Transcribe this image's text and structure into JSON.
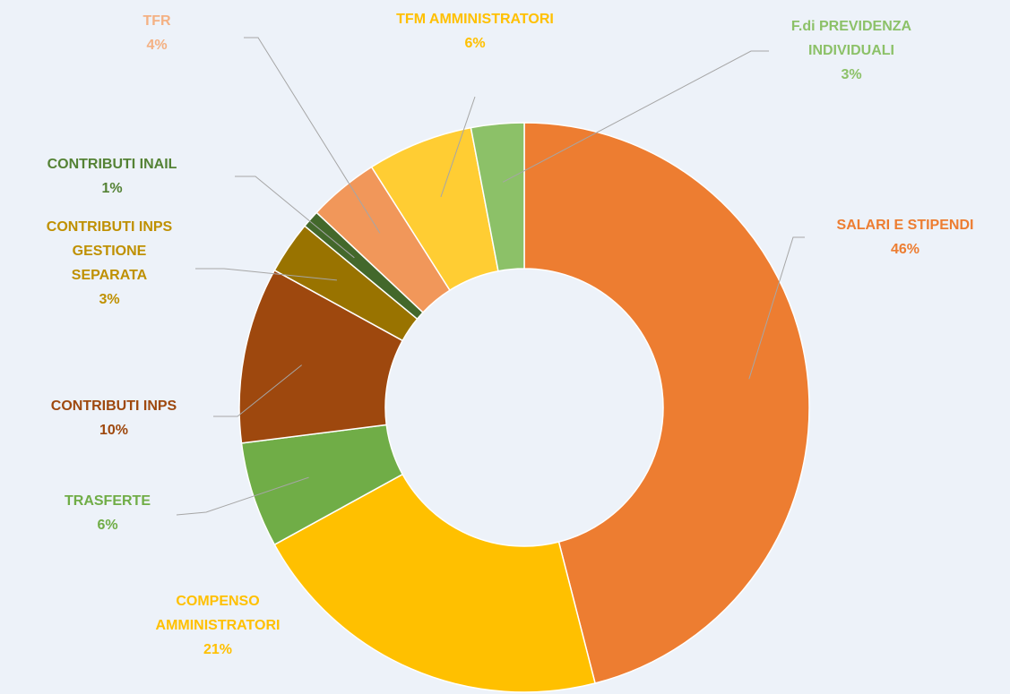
{
  "chart_data": {
    "type": "donut",
    "categories": [
      "SALARI E STIPENDI",
      "COMPENSO AMMINISTRATORI",
      "TRASFERTE",
      "CONTRIBUTI INPS",
      "CONTRIBUTI INPS GESTIONE SEPARATA",
      "CONTRIBUTI INAIL",
      "TFR",
      "TFM AMMINISTRATORI",
      "F.di PREVIDENZA INDIVIDUALI"
    ],
    "values": [
      46,
      21,
      6,
      10,
      3,
      1,
      4,
      6,
      3
    ],
    "value_labels": [
      "46%",
      "21%",
      "6%",
      "10%",
      "3%",
      "1%",
      "4%",
      "6%",
      "3%"
    ],
    "colors": [
      "#ed7d31",
      "#ffc000",
      "#70ad47",
      "#9e480e",
      "#997300",
      "#43682b",
      "#f1975a",
      "#ffcd33",
      "#8cc168"
    ]
  }
}
